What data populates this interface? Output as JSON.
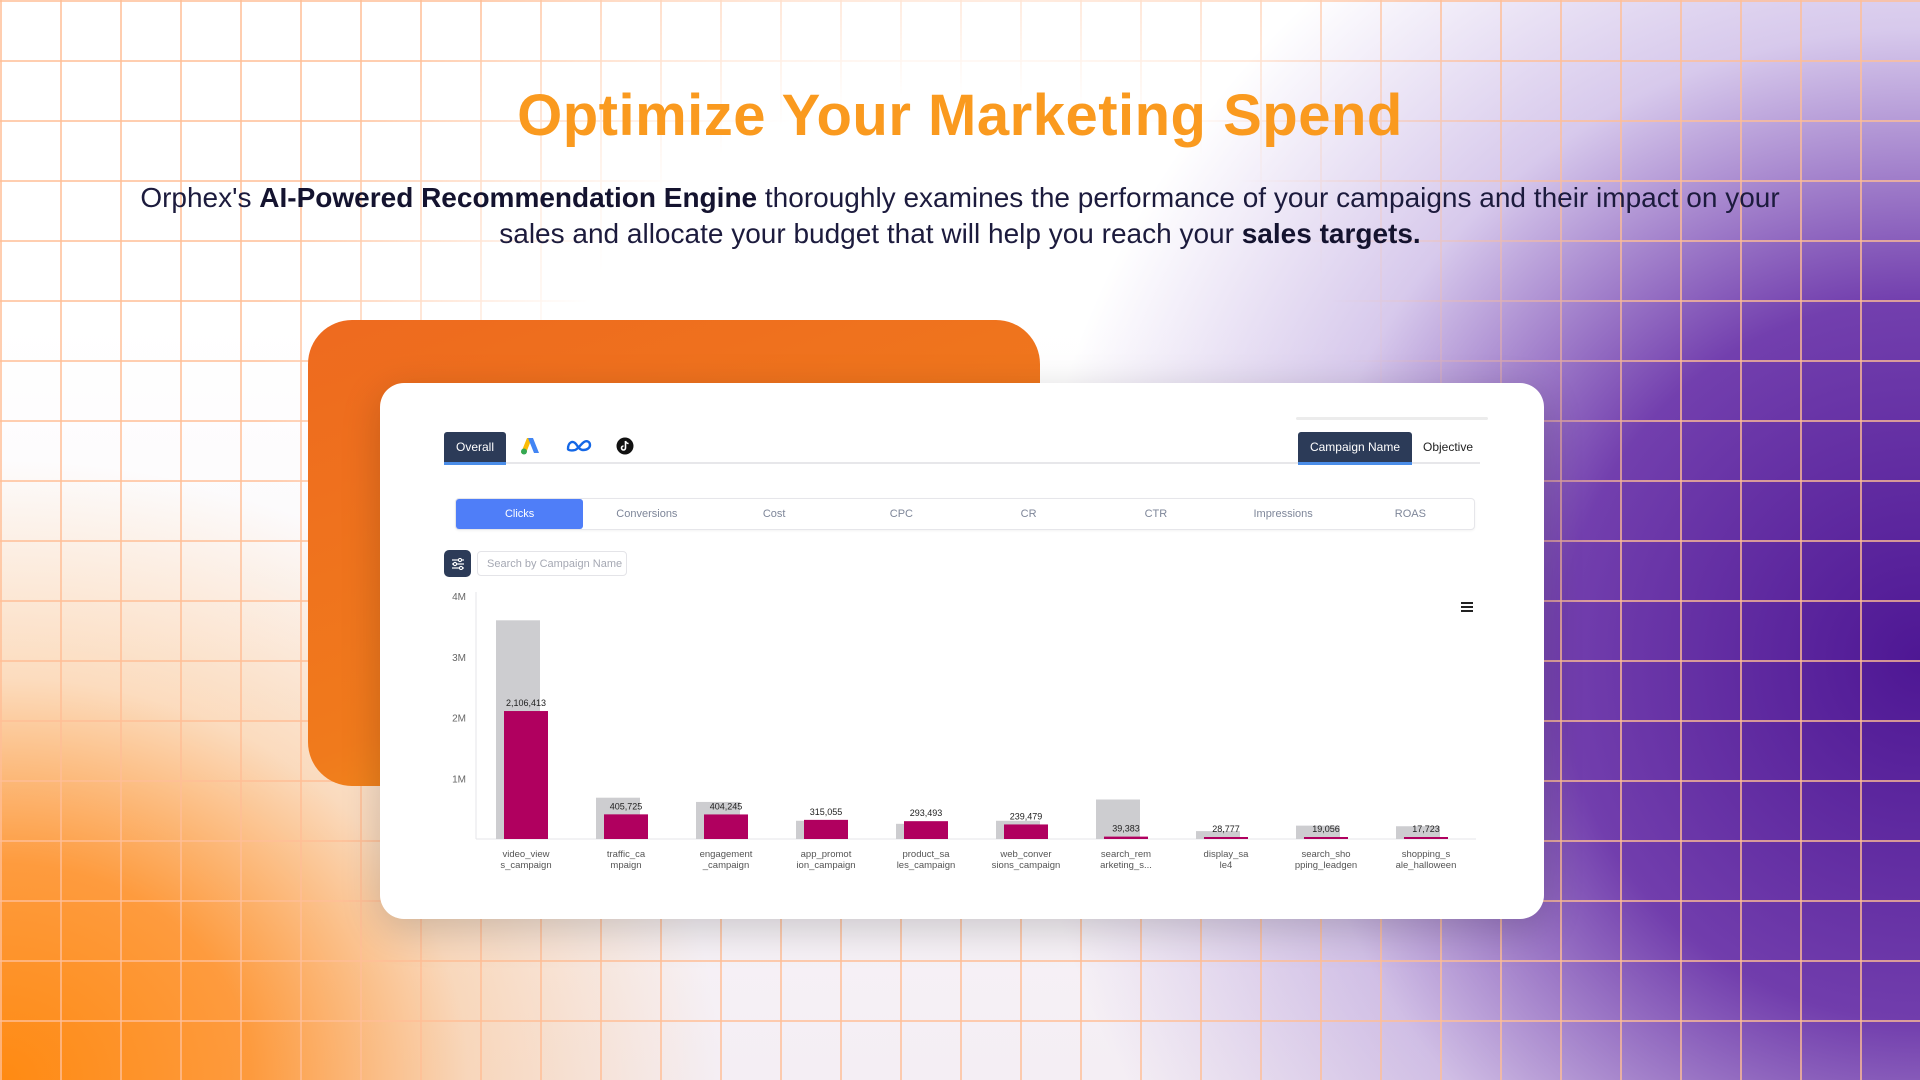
{
  "hero": {
    "title": "Optimize Your Marketing Spend",
    "sub_1": "Orphex's ",
    "sub_bold_1": "AI-Powered Recommendation Engine",
    "sub_2": " thoroughly examines the performance of your campaigns and their impact on your sales and allocate your budget that will help you reach your ",
    "sub_bold_2": "sales targets."
  },
  "platform_tabs": {
    "overall": "Overall",
    "icons": [
      "google-ads-icon",
      "meta-icon",
      "tiktok-icon"
    ]
  },
  "group_tabs": {
    "campaign": "Campaign Name",
    "objective": "Objective"
  },
  "metric_tabs": [
    "Clicks",
    "Conversions",
    "Cost",
    "CPC",
    "CR",
    "CTR",
    "Impressions",
    "ROAS"
  ],
  "search": {
    "placeholder": "Search by Campaign Name"
  },
  "colors": {
    "accent_orange": "#fa9a1f",
    "bar_primary": "#b0005f",
    "bar_secondary": "#cdcdd0",
    "nav_dark": "#2c3b58",
    "active_blue": "#4f7ef8"
  },
  "chart_data": {
    "type": "bar",
    "y_ticks": [
      "4M",
      "3M",
      "2M",
      "1M"
    ],
    "ylim": [
      0,
      4000000
    ],
    "categories": [
      [
        "video_view",
        "s_campaign"
      ],
      [
        "traffic_ca",
        "mpaign"
      ],
      [
        "engagement",
        "_campaign"
      ],
      [
        "app_promot",
        "ion_campaign"
      ],
      [
        "product_sa",
        "les_campaign"
      ],
      [
        "web_conver",
        "sions_campaign"
      ],
      [
        "search_rem",
        "arketing_s..."
      ],
      [
        "display_sa",
        "le4"
      ],
      [
        "search_sho",
        "pping_leadgen"
      ],
      [
        "shopping_s",
        "ale_halloween"
      ]
    ],
    "series": [
      {
        "values": [
          3600000,
          680000,
          610000,
          300000,
          250000,
          300000,
          650000,
          130000,
          220000,
          210000
        ]
      },
      {
        "values": [
          2106413,
          405725,
          404245,
          315055,
          293493,
          239479,
          39383,
          28777,
          19056,
          17723
        ],
        "labels": [
          "2,106,413",
          "405,725",
          "404,245",
          "315,055",
          "293,493",
          "239,479",
          "39,383",
          "28,777",
          "19,056",
          "17,723"
        ]
      }
    ]
  }
}
